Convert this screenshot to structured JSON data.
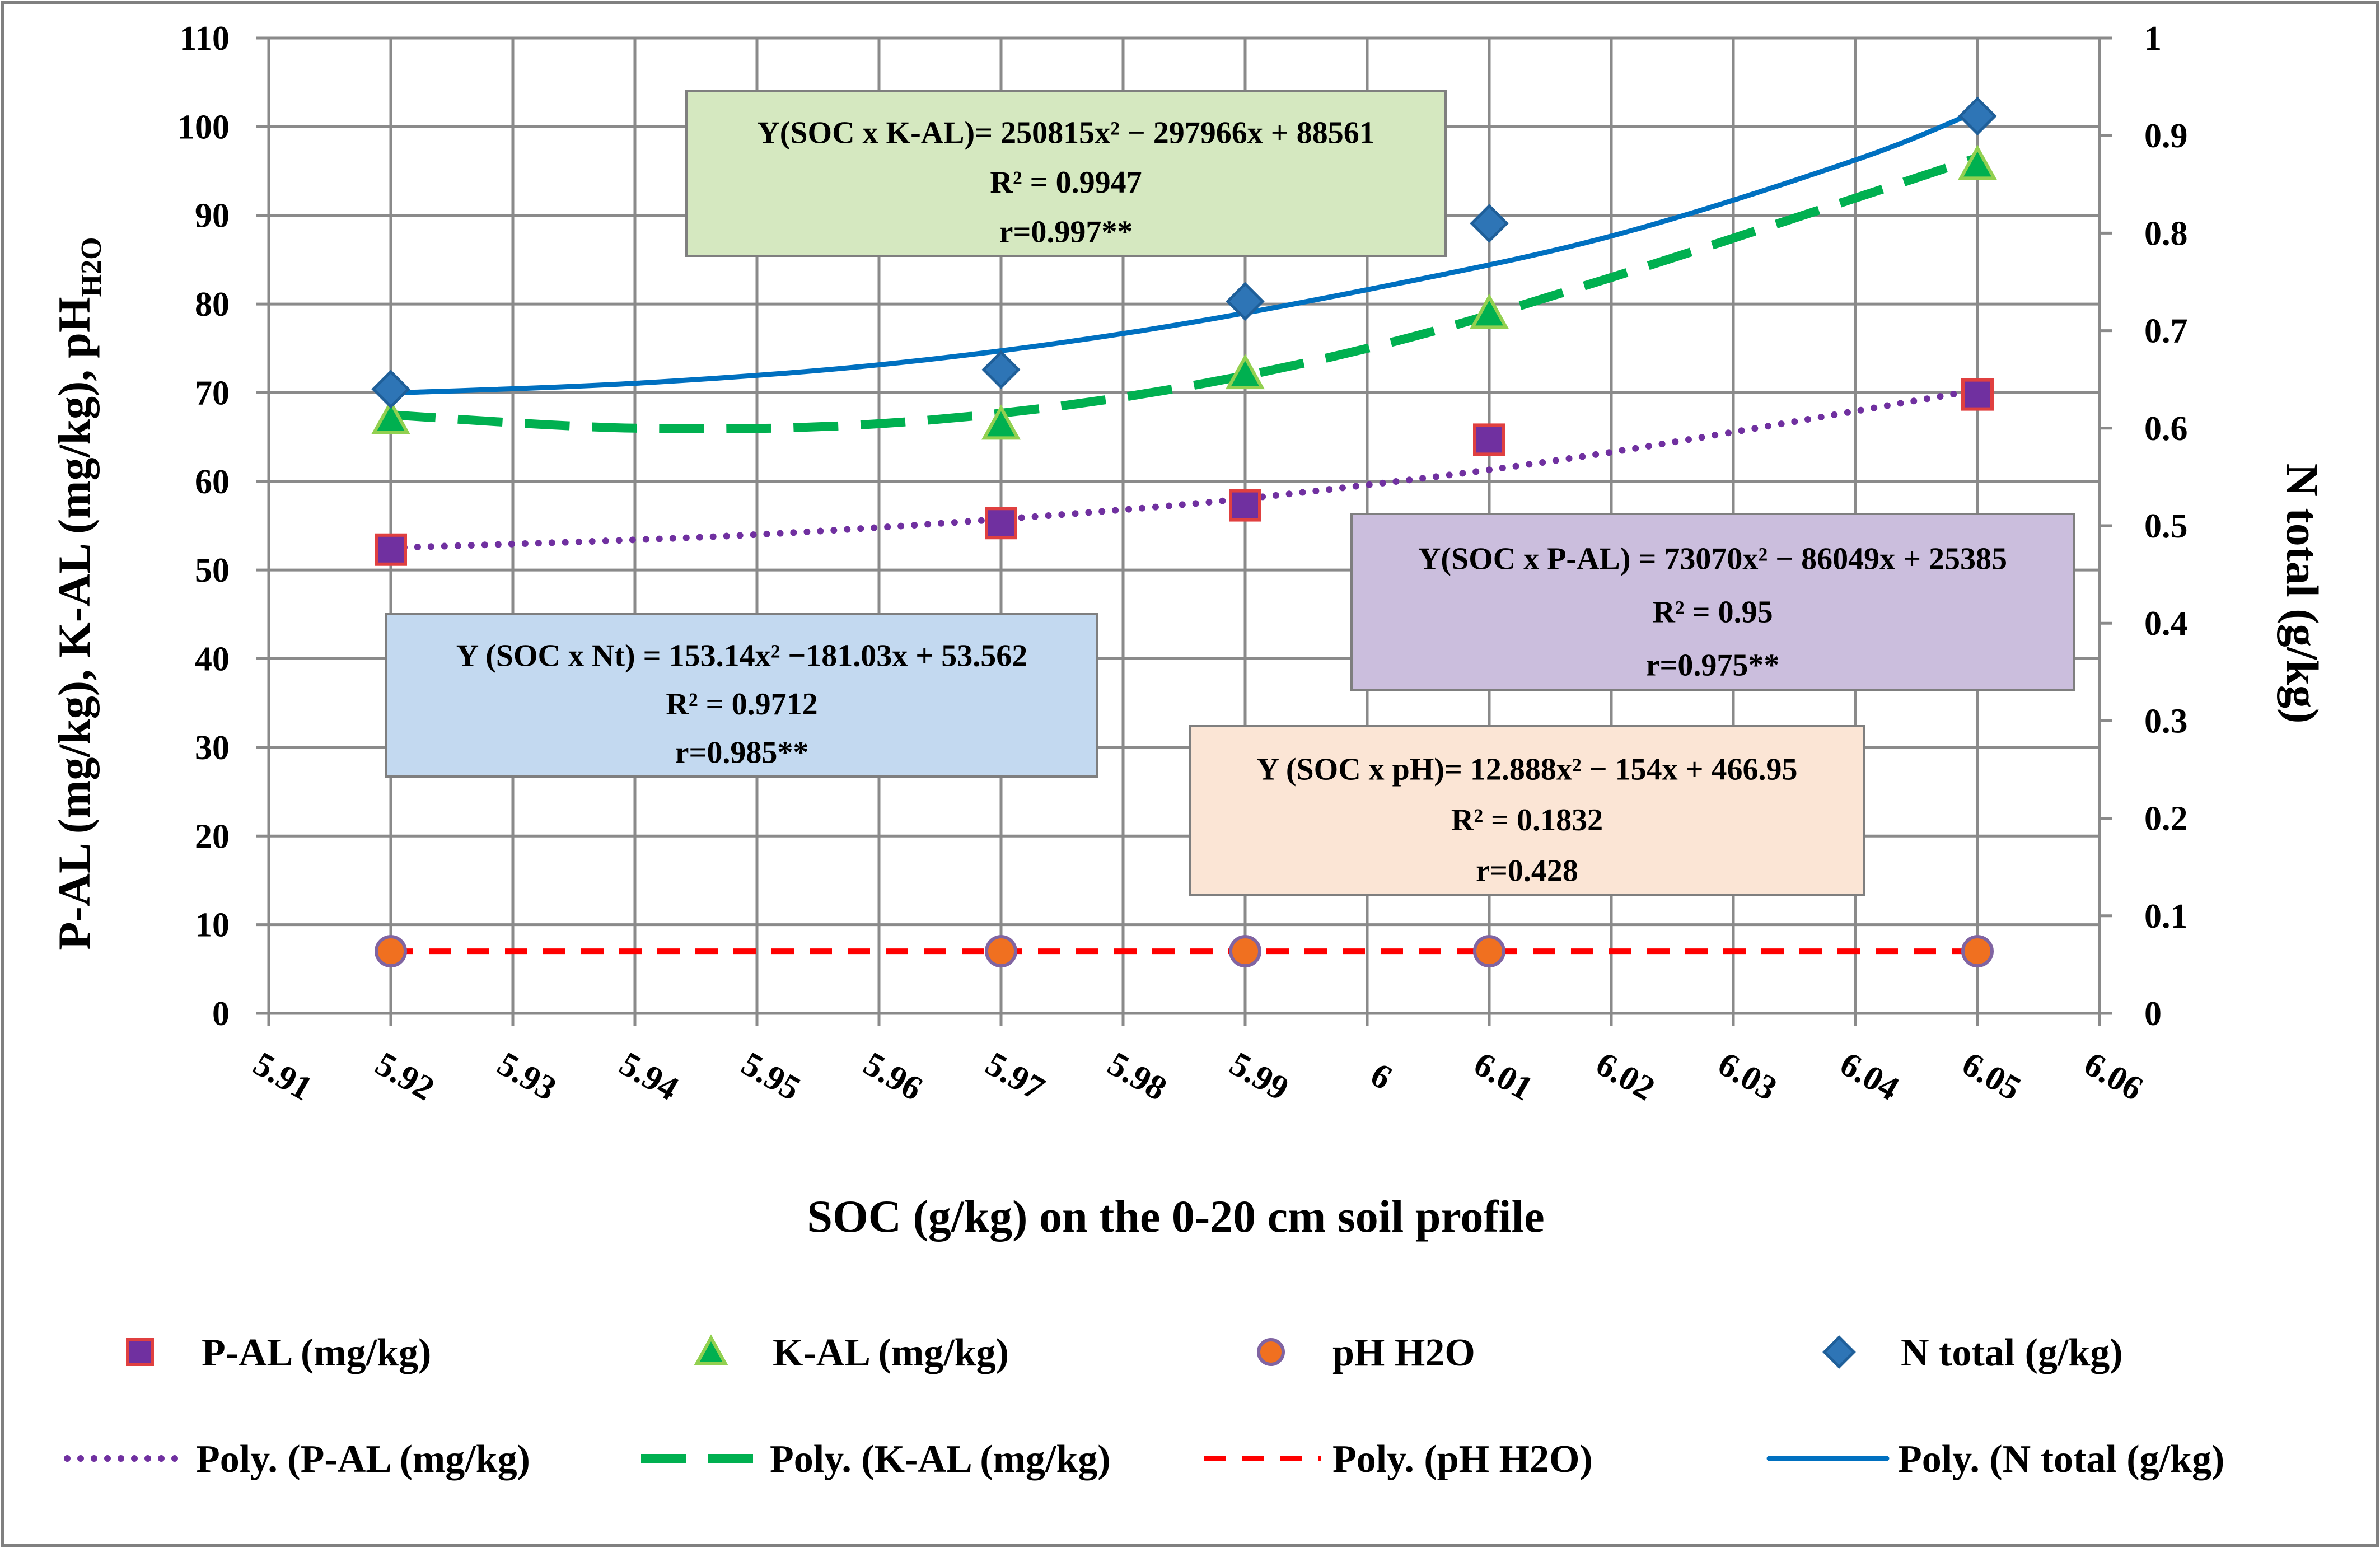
{
  "chart_data": {
    "type": "scatter",
    "x_axis": {
      "label": "SOC (g/kg) on the 0-20 cm soil profile",
      "range": [
        5.91,
        6.06
      ],
      "ticks": [
        "5.91",
        "5.92",
        "5.93",
        "5.94",
        "5.95",
        "5.96",
        "5.97",
        "5.98",
        "5.99",
        "6",
        "6.01",
        "6.02",
        "6.03",
        "6.04",
        "6.05",
        "6.06"
      ]
    },
    "y_axis_left": {
      "label": "P-AL (mg/kg), K-AL (mg/kg), pH",
      "label_subscript": "H2O",
      "range": [
        0,
        110
      ],
      "ticks": [
        "0",
        "10",
        "20",
        "30",
        "40",
        "50",
        "60",
        "70",
        "80",
        "90",
        "100",
        "110"
      ]
    },
    "y_axis_right": {
      "label": "N total (g/kg)",
      "range": [
        0,
        1
      ],
      "ticks": [
        "0",
        "0.1",
        "0.2",
        "0.3",
        "0.4",
        "0.5",
        "0.6",
        "0.7",
        "0.8",
        "0.9",
        "1"
      ]
    },
    "x": [
      5.92,
      5.97,
      5.99,
      6.01,
      6.05
    ],
    "series": [
      {
        "name": "P-AL (mg/kg)",
        "axis": "left",
        "marker": "square",
        "color": "#7030A0",
        "edge": "#E04040",
        "values": [
          52.3,
          55.3,
          57.3,
          64.7,
          69.8
        ]
      },
      {
        "name": "K-AL (mg/kg)",
        "axis": "left",
        "marker": "triangle",
        "color": "#00B050",
        "edge": "#92D050",
        "values": [
          67.0,
          66.4,
          72.1,
          78.9,
          95.7
        ]
      },
      {
        "name": "pH H2O",
        "axis": "left",
        "marker": "circle",
        "color": "#F07020",
        "edge": "#8064A2",
        "values": [
          7.0,
          7.0,
          7.0,
          7.0,
          7.0
        ]
      },
      {
        "name": "N total (g/kg)",
        "axis": "right",
        "marker": "diamond",
        "color": "#2E75B6",
        "edge": "#1F5F99",
        "values": [
          0.64,
          0.66,
          0.73,
          0.81,
          0.92
        ]
      }
    ],
    "trendlines": [
      {
        "name": "Poly. (P-AL (mg/kg)",
        "axis": "left",
        "style": "dotted",
        "color": "#7030A0",
        "points": [
          [
            5.92,
            52.5
          ],
          [
            5.95,
            54.0
          ],
          [
            5.98,
            56.8
          ],
          [
            6.0,
            59.6
          ],
          [
            6.02,
            63.3
          ],
          [
            6.05,
            70.3
          ]
        ]
      },
      {
        "name": "Poly. (K-AL (mg/kg)",
        "axis": "left",
        "style": "dashed",
        "color": "#00B050",
        "points": [
          [
            5.92,
            67.5
          ],
          [
            5.94,
            66.0
          ],
          [
            5.96,
            66.5
          ],
          [
            5.98,
            69.5
          ],
          [
            6.0,
            75.0
          ],
          [
            6.02,
            83.0
          ],
          [
            6.05,
            96.5
          ]
        ]
      },
      {
        "name": "Poly. (pH H2O)",
        "axis": "left",
        "style": "dashed",
        "color": "#FF0000",
        "points": [
          [
            5.92,
            7.0
          ],
          [
            6.05,
            7.0
          ]
        ]
      },
      {
        "name": "Poly. (N total (g/kg)",
        "axis": "right",
        "style": "solid",
        "color": "#0070C0",
        "points": [
          [
            5.92,
            0.636
          ],
          [
            5.94,
            0.646
          ],
          [
            5.96,
            0.665
          ],
          [
            5.98,
            0.697
          ],
          [
            6.0,
            0.742
          ],
          [
            6.02,
            0.797
          ],
          [
            6.04,
            0.875
          ],
          [
            6.05,
            0.925
          ]
        ]
      }
    ],
    "annotations": [
      {
        "id": "kal",
        "lines": [
          "Y(SOC x K-AL)= 250815x² − 297966x + 88561",
          "R² = 0.9947",
          "r=0.997**"
        ],
        "fill": "#D5E8C0"
      },
      {
        "id": "pal",
        "lines": [
          "Y(SOC x P-AL) = 73070x² − 86049x + 25385",
          "R² = 0.95",
          "r=0.975**"
        ],
        "fill": "#CBBEDD"
      },
      {
        "id": "nt",
        "lines": [
          "Y (SOC x Nt) = 153.14x² −181.03x + 53.562",
          "R² = 0.9712",
          "r=0.985**"
        ],
        "fill": "#C3D9F0"
      },
      {
        "id": "ph",
        "lines": [
          "Y (SOC x pH)= 12.888x² − 154x + 466.95",
          "R² = 0.1832",
          "r=0.428"
        ],
        "fill": "#FBE5D5"
      }
    ],
    "legend": {
      "placement": "bottom",
      "markers": [
        "P-AL (mg/kg)",
        "K-AL (mg/kg)",
        "pH H2O",
        "N total (g/kg)"
      ],
      "lines": [
        "Poly. (P-AL (mg/kg)",
        "Poly. (K-AL (mg/kg)",
        "Poly. (pH H2O)",
        "Poly. (N total (g/kg)"
      ]
    },
    "grid": true
  }
}
